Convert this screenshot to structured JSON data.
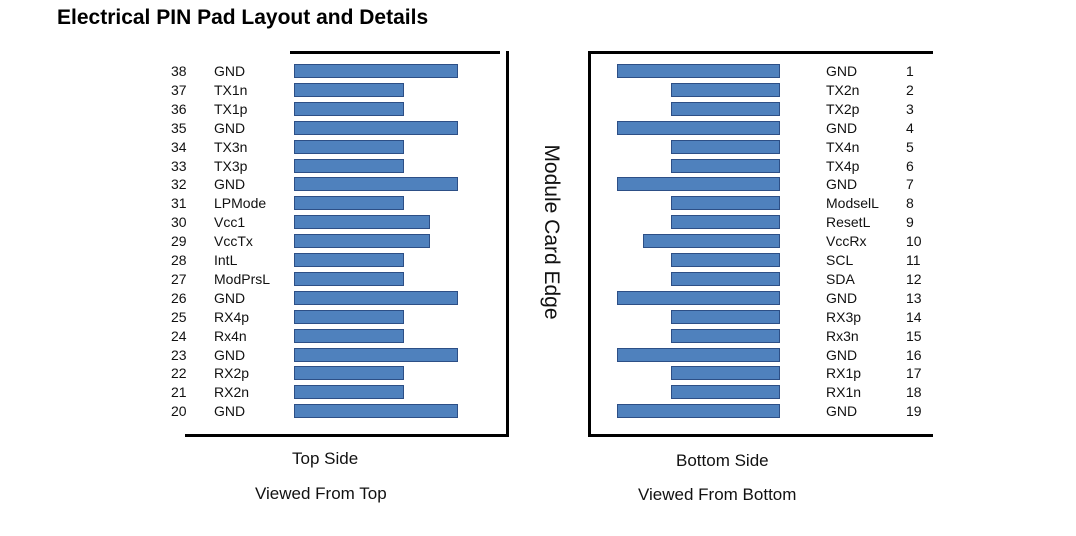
{
  "title": "Electrical PIN Pad Layout and Details",
  "edge_label": "Module Card Edge",
  "colors": {
    "pad_fill": "#4f81bd",
    "pad_border": "#2d4f86",
    "frame": "#000000"
  },
  "top_side": {
    "caption": "Top Side",
    "subcaption": "Viewed From Top",
    "pins": [
      {
        "pin": "38",
        "signal": "GND",
        "pad": "long"
      },
      {
        "pin": "37",
        "signal": "TX1n",
        "pad": "short"
      },
      {
        "pin": "36",
        "signal": "TX1p",
        "pad": "short"
      },
      {
        "pin": "35",
        "signal": "GND",
        "pad": "long"
      },
      {
        "pin": "34",
        "signal": "TX3n",
        "pad": "short"
      },
      {
        "pin": "33",
        "signal": "TX3p",
        "pad": "short"
      },
      {
        "pin": "32",
        "signal": "GND",
        "pad": "long"
      },
      {
        "pin": "31",
        "signal": "LPMode",
        "pad": "short"
      },
      {
        "pin": "30",
        "signal": "Vcc1",
        "pad": "medium"
      },
      {
        "pin": "29",
        "signal": "VccTx",
        "pad": "medium"
      },
      {
        "pin": "28",
        "signal": "IntL",
        "pad": "short"
      },
      {
        "pin": "27",
        "signal": "ModPrsL",
        "pad": "short"
      },
      {
        "pin": "26",
        "signal": "GND",
        "pad": "long"
      },
      {
        "pin": "25",
        "signal": "RX4p",
        "pad": "short"
      },
      {
        "pin": "24",
        "signal": "Rx4n",
        "pad": "short"
      },
      {
        "pin": "23",
        "signal": "GND",
        "pad": "long"
      },
      {
        "pin": "22",
        "signal": "RX2p",
        "pad": "short"
      },
      {
        "pin": "21",
        "signal": "RX2n",
        "pad": "short"
      },
      {
        "pin": "20",
        "signal": "GND",
        "pad": "long"
      }
    ]
  },
  "bottom_side": {
    "caption": "Bottom Side",
    "subcaption": "Viewed From Bottom",
    "pins": [
      {
        "pin": "1",
        "signal": "GND",
        "pad": "long"
      },
      {
        "pin": "2",
        "signal": "TX2n",
        "pad": "short"
      },
      {
        "pin": "3",
        "signal": "TX2p",
        "pad": "short"
      },
      {
        "pin": "4",
        "signal": "GND",
        "pad": "long"
      },
      {
        "pin": "5",
        "signal": "TX4n",
        "pad": "short"
      },
      {
        "pin": "6",
        "signal": "TX4p",
        "pad": "short"
      },
      {
        "pin": "7",
        "signal": "GND",
        "pad": "long"
      },
      {
        "pin": "8",
        "signal": "ModselL",
        "pad": "short"
      },
      {
        "pin": "9",
        "signal": "ResetL",
        "pad": "short"
      },
      {
        "pin": "10",
        "signal": "VccRx",
        "pad": "medium"
      },
      {
        "pin": "11",
        "signal": "SCL",
        "pad": "short"
      },
      {
        "pin": "12",
        "signal": "SDA",
        "pad": "short"
      },
      {
        "pin": "13",
        "signal": "GND",
        "pad": "long"
      },
      {
        "pin": "14",
        "signal": "RX3p",
        "pad": "short"
      },
      {
        "pin": "15",
        "signal": "Rx3n",
        "pad": "short"
      },
      {
        "pin": "16",
        "signal": "GND",
        "pad": "long"
      },
      {
        "pin": "17",
        "signal": "RX1p",
        "pad": "short"
      },
      {
        "pin": "18",
        "signal": "RX1n",
        "pad": "short"
      },
      {
        "pin": "19",
        "signal": "GND",
        "pad": "long"
      }
    ]
  }
}
